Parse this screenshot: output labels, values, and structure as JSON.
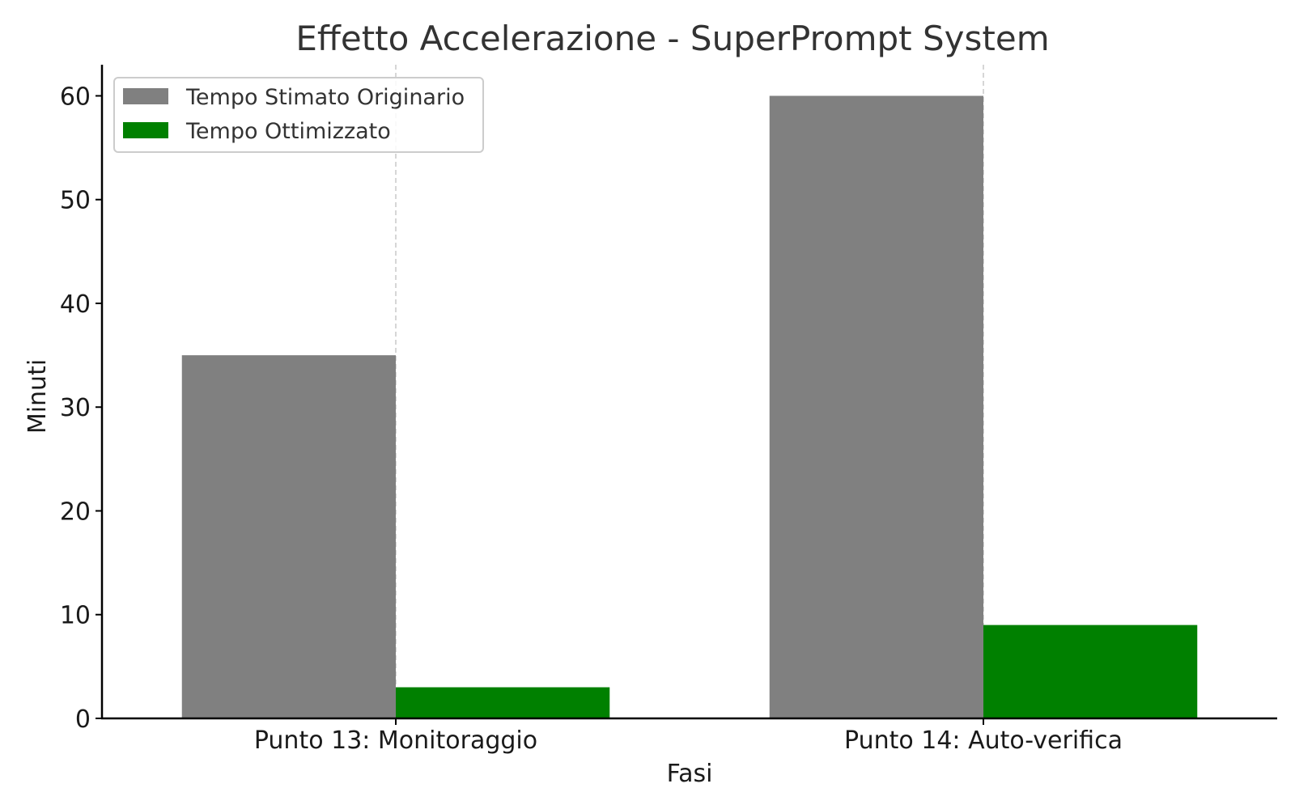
{
  "chart_data": {
    "type": "bar",
    "title": "Effetto Accelerazione - SuperPrompt System",
    "xlabel": "Fasi",
    "ylabel": "Minuti",
    "categories": [
      "Punto 13: Monitoraggio",
      "Punto 14: Auto-verifica"
    ],
    "series": [
      {
        "name": "Tempo Stimato Originario",
        "values": [
          35,
          60
        ],
        "color": "#808080"
      },
      {
        "name": "Tempo Ottimizzato",
        "values": [
          3,
          9
        ],
        "color": "#008000"
      }
    ],
    "ylim": [
      0,
      63
    ],
    "yticks": [
      0,
      10,
      20,
      30,
      40,
      50,
      60
    ],
    "grid": "x-dashed",
    "legend_position": "top-left"
  }
}
